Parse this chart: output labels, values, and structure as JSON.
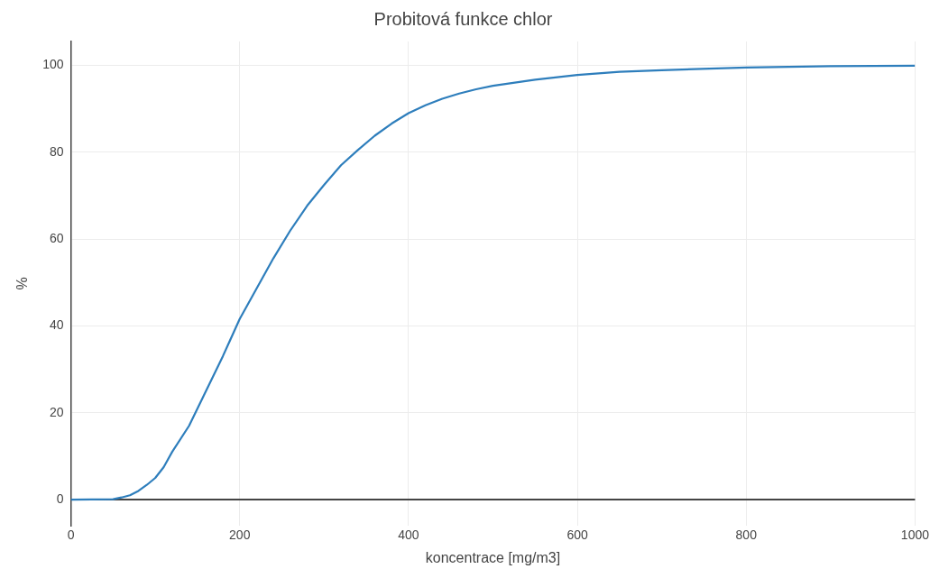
{
  "chart_data": {
    "type": "line",
    "title": "Probitová funkce chlor",
    "xlabel": "koncentrace [mg/m3]",
    "ylabel": "%",
    "x": [
      0,
      50,
      60,
      70,
      80,
      90,
      100,
      110,
      120,
      140,
      160,
      180,
      200,
      220,
      240,
      260,
      280,
      300,
      320,
      340,
      360,
      380,
      400,
      420,
      440,
      460,
      480,
      500,
      550,
      600,
      650,
      700,
      800,
      900,
      1000
    ],
    "series": [
      {
        "color": "#2e7ebc",
        "values": [
          0,
          0.1,
          0.5,
          1,
          2,
          3.4,
          5,
          7.5,
          11,
          17,
          25,
          33,
          41.6,
          48.6,
          55.6,
          62,
          67.7,
          72.5,
          77,
          80.5,
          83.8,
          86.6,
          89,
          90.8,
          92.3,
          93.5,
          94.5,
          95.3,
          96.7,
          97.8,
          98.5,
          98.9,
          99.5,
          99.8,
          99.9
        ]
      }
    ],
    "xlim": [
      0,
      1000
    ],
    "xticks": [
      0,
      200,
      400,
      600,
      800,
      1000
    ],
    "ylim": [
      -6,
      105.5
    ],
    "yticks": [
      0,
      20,
      40,
      60,
      80,
      100
    ],
    "grid": true,
    "legend": false,
    "marker": "none",
    "line_style": "solid"
  }
}
